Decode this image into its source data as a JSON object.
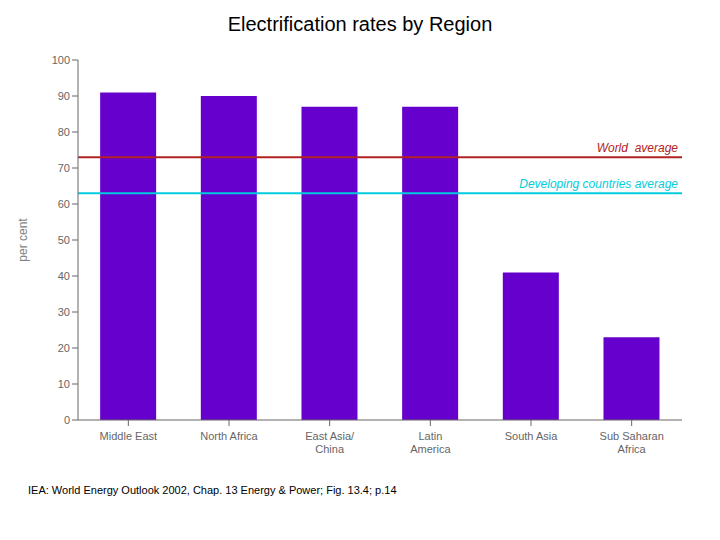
{
  "chart_data": {
    "type": "bar",
    "title": "Electrification rates by Region",
    "categories": [
      "Middle East",
      "North Africa",
      "East Asia/\nChina",
      "Latin\nAmerica",
      "South Asia",
      "Sub Saharan\nAfrica"
    ],
    "values": [
      91,
      90,
      87,
      87,
      41,
      23
    ],
    "color": "#6600CC",
    "ylabel": "per cent",
    "ylim": [
      0,
      100
    ],
    "yticks": [
      0,
      10,
      20,
      30,
      40,
      50,
      60,
      70,
      80,
      90,
      100
    ],
    "grid": false,
    "reference_lines": [
      {
        "label": "World  average",
        "value": 73,
        "color": "#B22222"
      },
      {
        "label": "Developing countries average",
        "value": 63,
        "color": "#00CCDD"
      }
    ],
    "caption": "IEA: World Energy Outlook 2002, Chap. 13 Energy & Power; Fig. 13.4; p.14"
  }
}
